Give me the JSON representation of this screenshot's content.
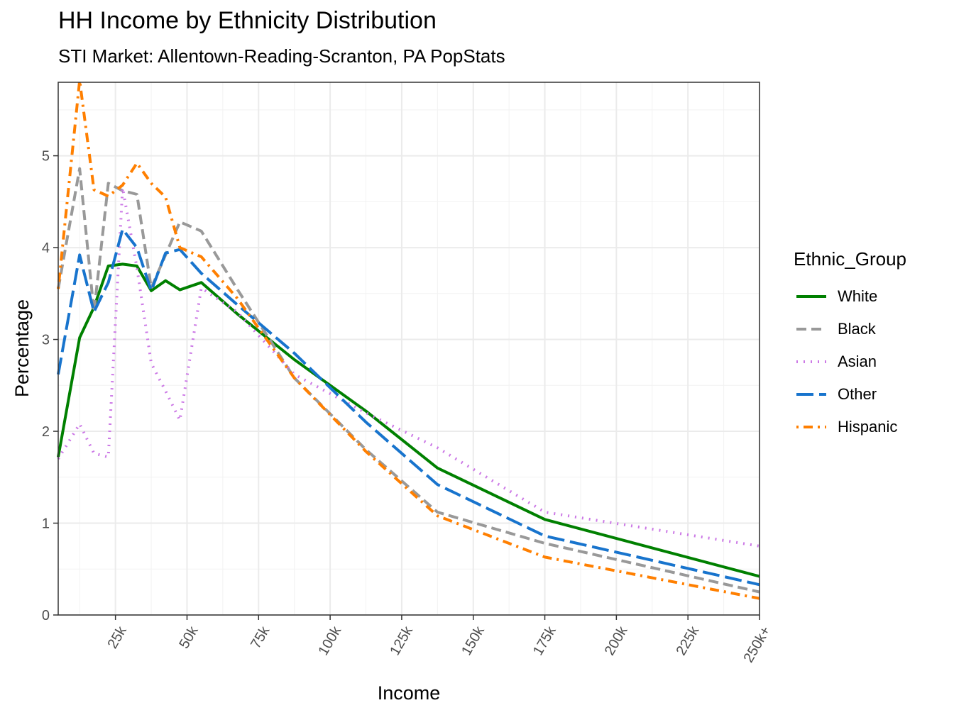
{
  "chart_data": {
    "type": "line",
    "title": "HH Income by Ethnicity Distribution",
    "subtitle": "STI Market: Allentown-Reading-Scranton, PA PopStats",
    "xlabel": "Income",
    "ylabel": "Percentage",
    "xlim": [
      5,
      250
    ],
    "ylim": [
      0,
      5.8
    ],
    "xticks": [
      25,
      50,
      75,
      100,
      125,
      150,
      175,
      200,
      225,
      250
    ],
    "xtick_labels": [
      "25k",
      "50k",
      "75k",
      "100k",
      "125k",
      "150k",
      "175k",
      "200k",
      "225k",
      "250k+"
    ],
    "yticks": [
      0,
      1,
      2,
      3,
      4,
      5
    ],
    "ytick_labels": [
      "0",
      "1",
      "2",
      "3",
      "4",
      "5"
    ],
    "grid": true,
    "legend_title": "Ethnic_Group",
    "legend_position": "right",
    "x": [
      5,
      12.5,
      17.5,
      22.5,
      27.5,
      32.5,
      37.5,
      42.5,
      47.5,
      55,
      67.5,
      87.5,
      112.5,
      137.5,
      175,
      250
    ],
    "series": [
      {
        "name": "White",
        "color": "#008000",
        "dash": "solid",
        "values": [
          1.72,
          3.02,
          3.35,
          3.8,
          3.82,
          3.8,
          3.53,
          3.64,
          3.54,
          3.62,
          3.28,
          2.78,
          2.22,
          1.6,
          1.04,
          0.42
        ]
      },
      {
        "name": "Black",
        "color": "#999999",
        "dash": "dashed",
        "values": [
          3.55,
          4.86,
          3.3,
          4.7,
          4.62,
          4.58,
          3.56,
          3.92,
          4.28,
          4.18,
          3.55,
          2.58,
          1.8,
          1.12,
          0.78,
          0.25
        ]
      },
      {
        "name": "Asian",
        "color": "#CC79E6",
        "dash": "dotted",
        "values": [
          1.7,
          2.08,
          1.76,
          1.72,
          4.65,
          3.78,
          2.74,
          2.44,
          2.12,
          3.56,
          3.3,
          2.62,
          2.2,
          1.82,
          1.12,
          0.75
        ]
      },
      {
        "name": "Other",
        "color": "#1874CD",
        "dash": "longdash",
        "values": [
          2.62,
          3.92,
          3.3,
          3.62,
          4.2,
          4.0,
          3.53,
          3.94,
          3.98,
          3.72,
          3.38,
          2.85,
          2.1,
          1.42,
          0.86,
          0.33
        ]
      },
      {
        "name": "Hispanic",
        "color": "#FF7F00",
        "dash": "dotdash",
        "values": [
          3.55,
          5.82,
          4.63,
          4.56,
          4.68,
          4.92,
          4.7,
          4.55,
          4.0,
          3.9,
          3.45,
          2.58,
          1.78,
          1.08,
          0.63,
          0.18
        ]
      }
    ]
  }
}
